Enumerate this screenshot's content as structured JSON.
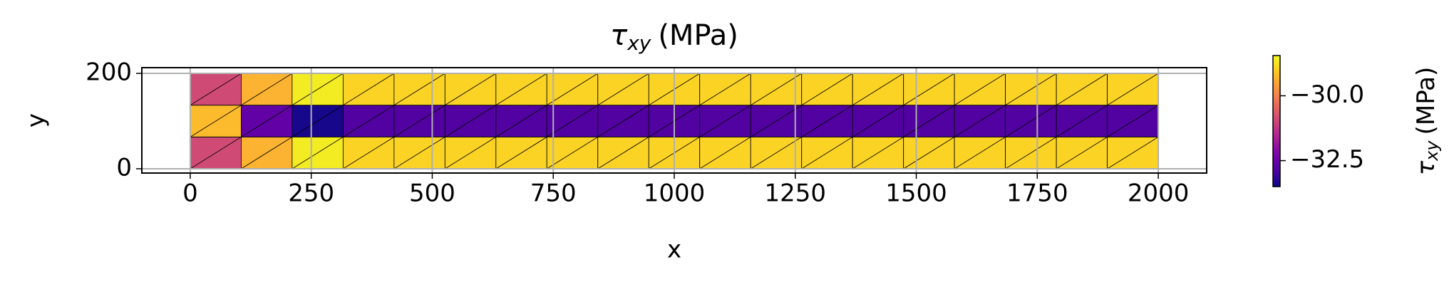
{
  "chart_data": {
    "type": "tripcolor",
    "title": {
      "symbol": "τ",
      "subscript": "xy",
      "unit": "(MPa)"
    },
    "x_label": "x",
    "y_label": "y",
    "x": [
      0,
      105.3,
      210.5,
      315.8,
      421.1,
      526.3,
      631.6,
      736.8,
      842.1,
      947.4,
      1052.6,
      1157.9,
      1263.2,
      1368.4,
      1473.7,
      1578.9,
      1684.2,
      1789.5,
      1894.7,
      2000
    ],
    "y": [
      0,
      66.7,
      133.3,
      200
    ],
    "values": [
      [
        -30.9,
        -29.3,
        -28.6,
        -28.9,
        -28.9,
        -28.9,
        -28.9,
        -28.9,
        -28.9,
        -28.9,
        -28.9,
        -28.9,
        -28.9,
        -28.9,
        -28.9,
        -28.9,
        -28.9,
        -28.9,
        -28.9
      ],
      [
        -29.2,
        -32.6,
        -33.4,
        -32.8,
        -32.8,
        -32.8,
        -32.8,
        -32.8,
        -32.8,
        -32.8,
        -32.8,
        -32.8,
        -32.8,
        -32.8,
        -32.8,
        -32.8,
        -32.8,
        -32.8,
        -32.8
      ],
      [
        -30.9,
        -29.3,
        -28.6,
        -28.9,
        -28.9,
        -28.9,
        -28.9,
        -28.9,
        -28.9,
        -28.9,
        -28.9,
        -28.9,
        -28.9,
        -28.9,
        -28.9,
        -28.9,
        -28.9,
        -28.9,
        -28.9
      ]
    ],
    "colormap": "plasma",
    "clim": [
      -33.5,
      -28.45
    ],
    "xlim": [
      -100,
      2100
    ],
    "ylim": [
      -9,
      212
    ],
    "xticks": [
      0,
      250,
      500,
      750,
      1000,
      1250,
      1500,
      1750,
      2000
    ],
    "yticks": [
      0,
      200
    ],
    "grid": true,
    "colorbar": {
      "label": {
        "symbol": "τ",
        "subscript": "xy",
        "unit": "(MPa)"
      },
      "ticks": [
        {
          "value": -30.0,
          "label": "−30.0"
        },
        {
          "value": -32.5,
          "label": "−32.5"
        }
      ]
    }
  }
}
